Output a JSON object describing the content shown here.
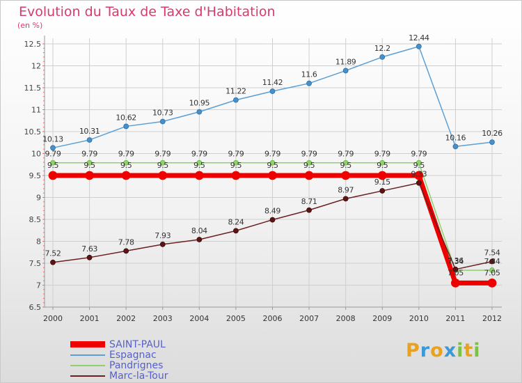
{
  "title": "Evolution du Taux de Taxe d'Habitation",
  "unit_label": "(en %)",
  "logo": {
    "letters": [
      "P",
      "r",
      "o",
      "x",
      "i",
      "t",
      "i"
    ],
    "colors": [
      "#e9a21d",
      "#3d98d6",
      "#e9a21d",
      "#3d98d6",
      "#7cc242",
      "#e9a21d",
      "#7cc242"
    ]
  },
  "chart_data": {
    "type": "line",
    "x": [
      "2000",
      "2001",
      "2002",
      "2003",
      "2004",
      "2005",
      "2006",
      "2007",
      "2008",
      "2009",
      "2010",
      "2011",
      "2012"
    ],
    "ylim": [
      6.5,
      12.5
    ],
    "yticks": [
      "6.5",
      "7",
      "7.5",
      "8",
      "8.5",
      "9",
      "9.5",
      "10",
      "10.5",
      "11",
      "11.5",
      "12",
      "12.5"
    ],
    "grid": true,
    "legend_position": "bottom-left",
    "series": [
      {
        "name": "SAINT-PAUL",
        "color": "#ee0000",
        "values": [
          9.5,
          9.5,
          9.5,
          9.5,
          9.5,
          9.5,
          9.5,
          9.5,
          9.5,
          9.5,
          9.5,
          7.05,
          7.05
        ],
        "labels": [
          "9.5",
          "9.5",
          "9.5",
          "9.5",
          "9.5",
          "9.5",
          "9.5",
          "9.5",
          "9.5",
          "9.5",
          "9.5",
          "7.05",
          "7.05"
        ]
      },
      {
        "name": "Espagnac",
        "color": "#5b9fd4",
        "values": [
          10.13,
          10.31,
          10.62,
          10.73,
          10.95,
          11.22,
          11.42,
          11.6,
          11.89,
          12.2,
          12.44,
          10.16,
          10.26
        ],
        "labels": [
          "10.13",
          "10.31",
          "10.62",
          "10.73",
          "10.95",
          "11.22",
          "11.42",
          "11.6",
          "11.89",
          "12.2",
          "12.44",
          "10.16",
          "10.26"
        ]
      },
      {
        "name": "Pandrignes",
        "color": "#8fd16c",
        "values": [
          9.79,
          9.79,
          9.79,
          9.79,
          9.79,
          9.79,
          9.79,
          9.79,
          9.79,
          9.79,
          9.79,
          7.34,
          7.34
        ],
        "labels": [
          "9.79",
          "9.79",
          "9.79",
          "9.79",
          "9.79",
          "9.79",
          "9.79",
          "9.79",
          "9.79",
          "9.79",
          "9.79",
          "7.34",
          "7.34"
        ]
      },
      {
        "name": "Marc-la-Tour",
        "color": "#6b1f1f",
        "values": [
          7.52,
          7.63,
          7.78,
          7.93,
          8.04,
          8.24,
          8.49,
          8.71,
          8.97,
          9.15,
          9.33,
          7.36,
          7.54
        ],
        "labels": [
          "7.52",
          "7.63",
          "7.78",
          "7.93",
          "8.04",
          "8.24",
          "8.49",
          "8.71",
          "8.97",
          "9.15",
          "9.33",
          "7.36",
          "7.54"
        ]
      }
    ]
  }
}
